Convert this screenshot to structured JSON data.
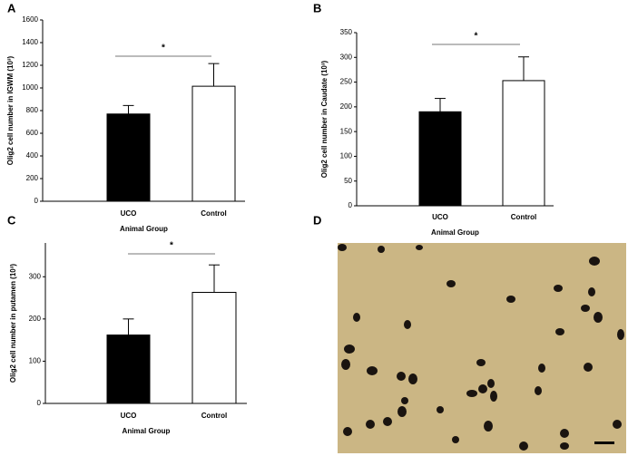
{
  "chart_data": [
    {
      "type": "bar",
      "panel_label": "A",
      "ylabel": "Olig2 cell number in IGWM (10³)",
      "xlabel": "Animal Group",
      "categories": [
        "UCO",
        "Control"
      ],
      "values": [
        770,
        1015
      ],
      "errors": [
        75,
        200
      ],
      "colors": [
        "#000000",
        "#ffffff"
      ],
      "ylim": [
        0,
        1600
      ],
      "yticks": [
        0,
        200,
        400,
        600,
        800,
        1000,
        1200,
        1400,
        1600
      ],
      "annotation": "*"
    },
    {
      "type": "bar",
      "panel_label": "B",
      "ylabel": "Olig2 cell number in Caudate (10³)",
      "xlabel": "Animal Group",
      "categories": [
        "UCO",
        "Control"
      ],
      "values": [
        190,
        253
      ],
      "errors": [
        27,
        48
      ],
      "colors": [
        "#000000",
        "#ffffff"
      ],
      "ylim": [
        0,
        350
      ],
      "yticks": [
        0,
        50,
        100,
        150,
        200,
        250,
        300,
        350
      ],
      "annotation": "*"
    },
    {
      "type": "bar",
      "panel_label": "C",
      "ylabel": "Olig2 cell number in putamen (10³)",
      "xlabel": "Animal Group",
      "categories": [
        "UCO",
        "Control"
      ],
      "values": [
        162,
        263
      ],
      "errors": [
        38,
        65
      ],
      "colors": [
        "#000000",
        "#ffffff"
      ],
      "ylim": [
        0,
        380
      ],
      "yticks": [
        0,
        100,
        200,
        300
      ],
      "annotation": "*"
    }
  ],
  "panel_d": {
    "label": "D"
  }
}
